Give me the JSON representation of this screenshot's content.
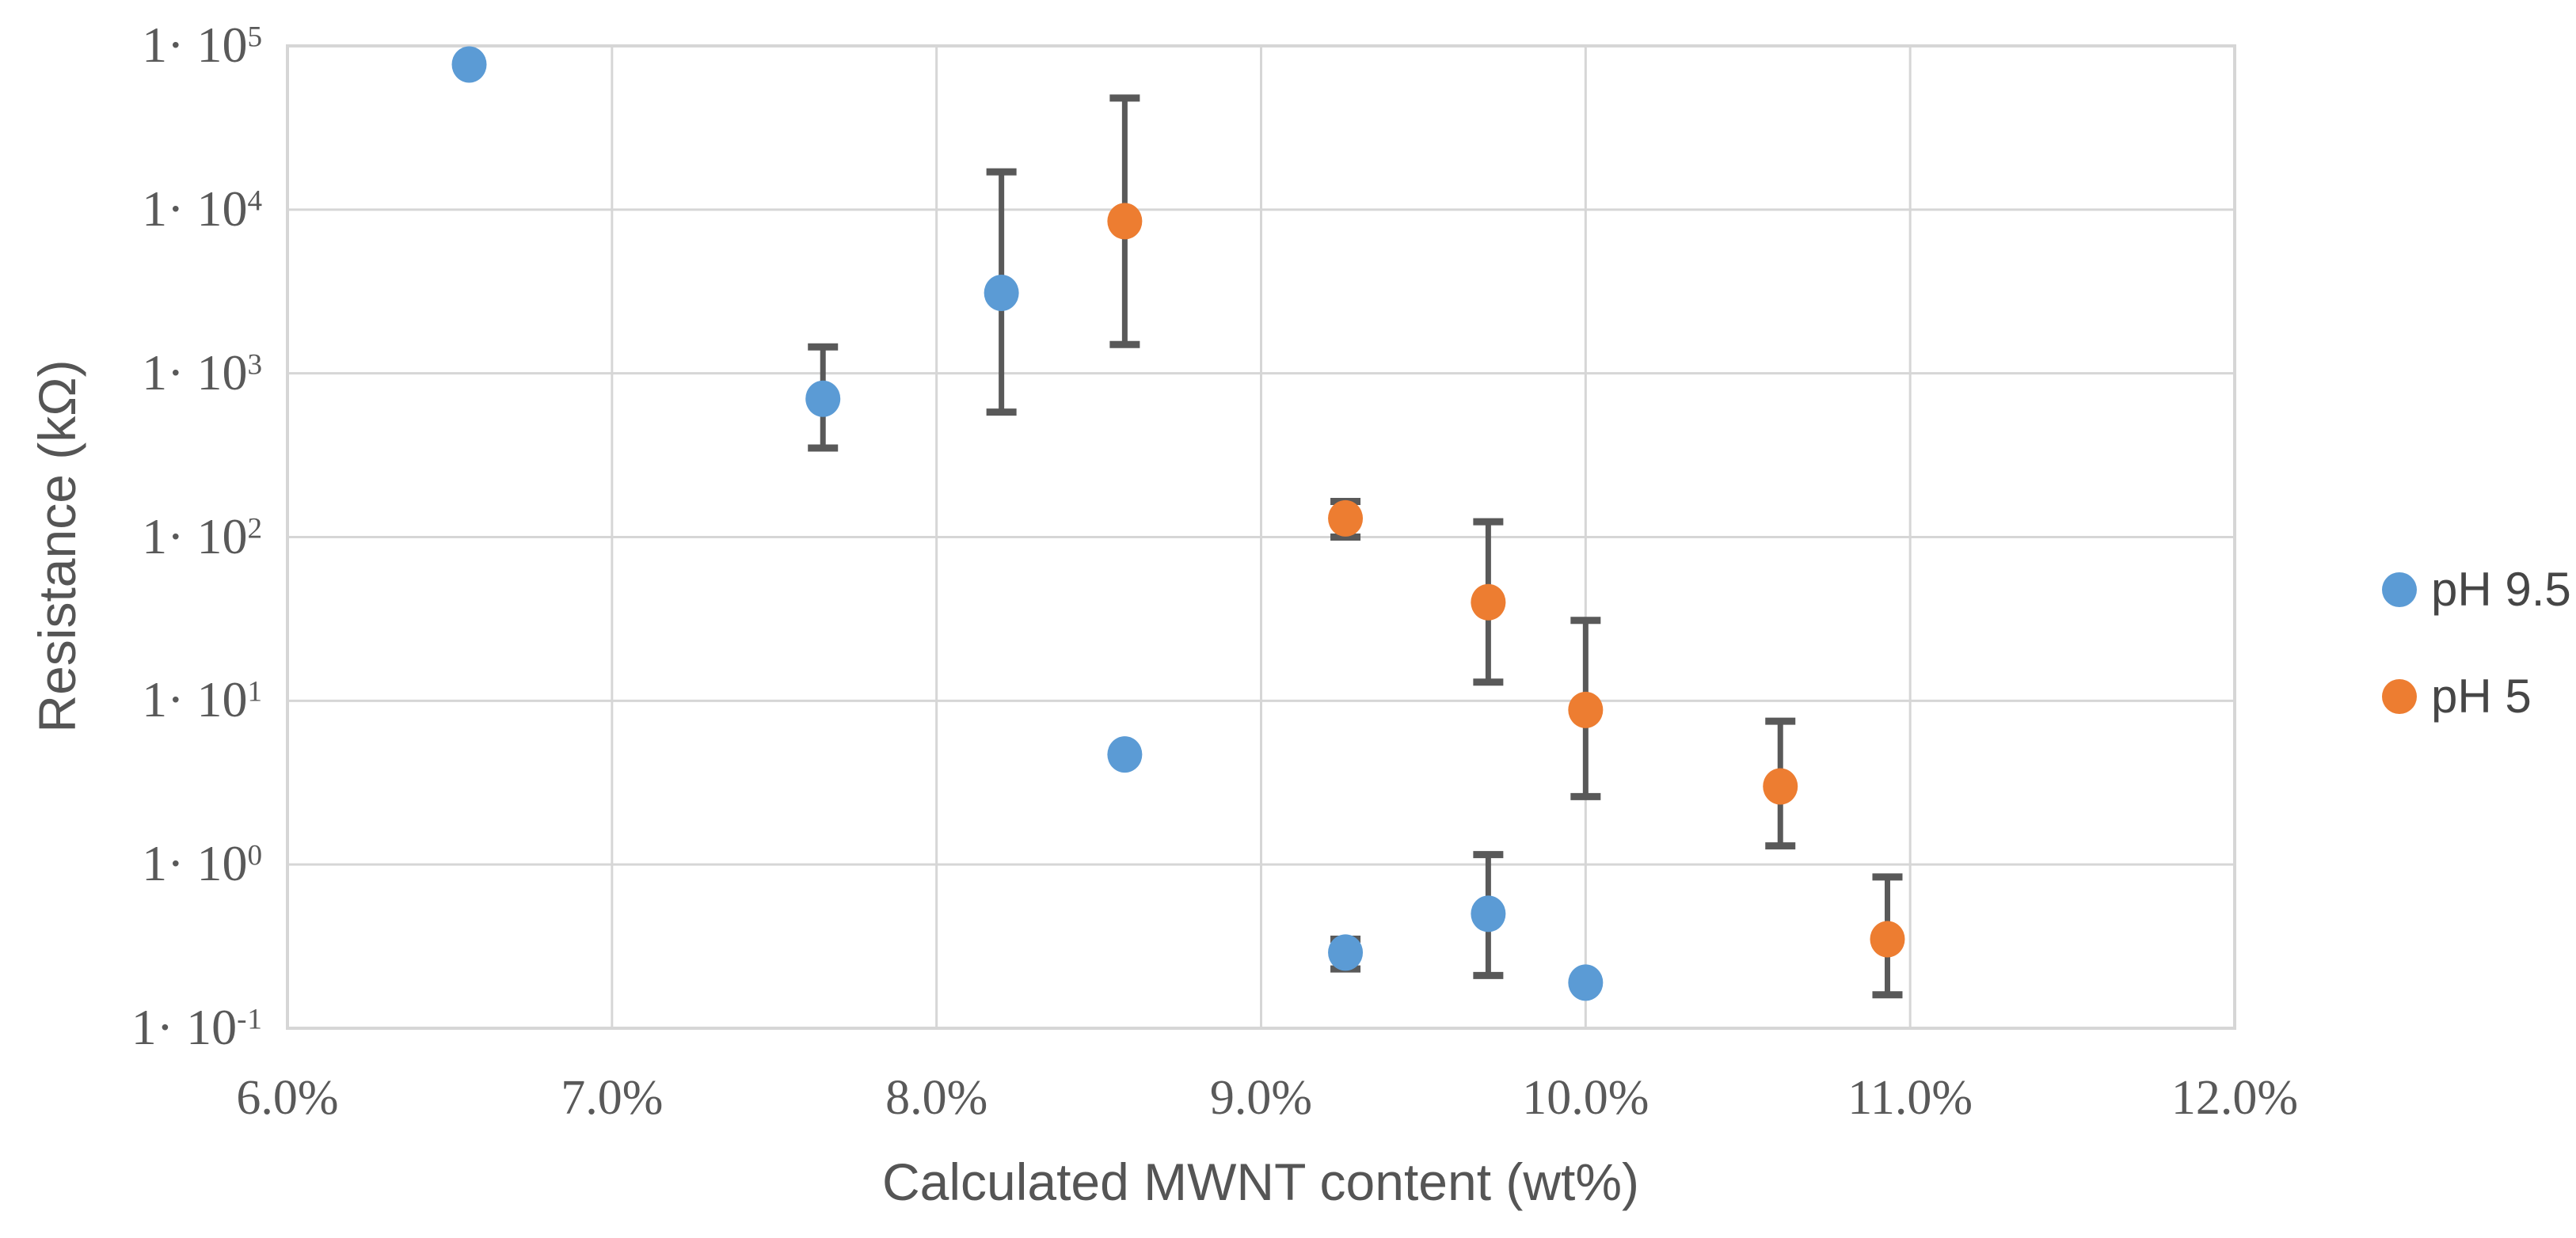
{
  "chart_data": {
    "type": "scatter",
    "title": "",
    "xlabel": "Calculated MWNT content (wt%)",
    "ylabel": "Resistance (kΩ)",
    "grid": true,
    "legend_position": "right",
    "background": "#ffffff",
    "gridline_color": "#d6d6d6",
    "error_bar_color": "#595959",
    "tick_color": "#595959",
    "x_axis": {
      "min": 6.0,
      "max": 12.0,
      "unit": "wt%",
      "tick_values": [
        6,
        7,
        8,
        9,
        10,
        11,
        12
      ],
      "ticks": [
        "6.0%",
        "7.0%",
        "8.0%",
        "9.0%",
        "10.0%",
        "11.0%",
        "12.0%"
      ]
    },
    "y_axis": {
      "scale": "log",
      "min": 0.1,
      "max": 100000,
      "unit": "kΩ",
      "ticks": [
        {
          "base": "1· 10",
          "exp": "5",
          "value": 100000
        },
        {
          "base": "1· 10",
          "exp": "4",
          "value": 10000
        },
        {
          "base": "1· 10",
          "exp": "3",
          "value": 1000
        },
        {
          "base": "1· 10",
          "exp": "2",
          "value": 100
        },
        {
          "base": "1· 10",
          "exp": "1",
          "value": 10
        },
        {
          "base": "1· 10",
          "exp": "0",
          "value": 1
        },
        {
          "base": "1· 10",
          "exp": "-1",
          "value": 0.1
        }
      ]
    },
    "series": [
      {
        "name": "pH 9.5",
        "color": "#5B9BD5",
        "points": [
          {
            "x": 6.56,
            "y": 77000,
            "lo": null,
            "hi": null
          },
          {
            "x": 7.65,
            "y": 700,
            "lo": 350,
            "hi": 1450
          },
          {
            "x": 8.2,
            "y": 3100,
            "lo": 580,
            "hi": 17000
          },
          {
            "x": 8.58,
            "y": 4.7,
            "lo": null,
            "hi": null
          },
          {
            "x": 9.26,
            "y": 0.29,
            "lo": 0.23,
            "hi": 0.35
          },
          {
            "x": 9.7,
            "y": 0.5,
            "lo": 0.21,
            "hi": 1.15
          },
          {
            "x": 10.0,
            "y": 0.19,
            "lo": null,
            "hi": null
          }
        ]
      },
      {
        "name": "pH 5",
        "color": "#ED7D31",
        "points": [
          {
            "x": 8.58,
            "y": 8500,
            "lo": 1500,
            "hi": 48000
          },
          {
            "x": 9.26,
            "y": 130,
            "lo": 100,
            "hi": 165
          },
          {
            "x": 9.7,
            "y": 40,
            "lo": 13,
            "hi": 124
          },
          {
            "x": 10.0,
            "y": 8.8,
            "lo": 2.6,
            "hi": 31
          },
          {
            "x": 10.6,
            "y": 3.0,
            "lo": 1.3,
            "hi": 7.5
          },
          {
            "x": 10.93,
            "y": 0.35,
            "lo": 0.16,
            "hi": 0.84
          }
        ]
      }
    ]
  }
}
